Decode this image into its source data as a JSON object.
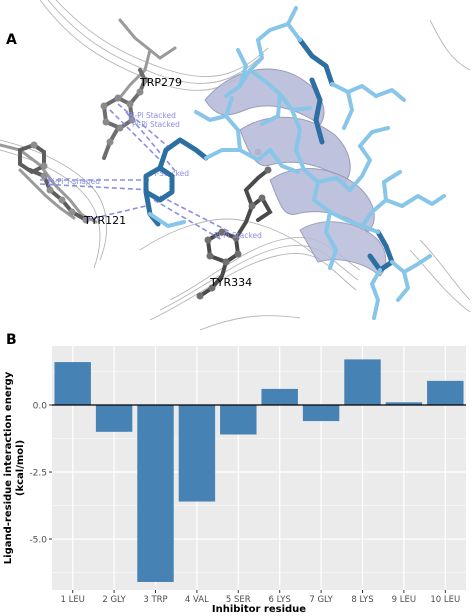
{
  "panels": {
    "a": {
      "label": "A"
    },
    "b": {
      "label": "B"
    }
  },
  "molecule_labels": {
    "trp279": "TRP279",
    "tyr121": "TYR121",
    "tyr334": "TYR334",
    "interaction_1": "Pi-Pi Stacked",
    "interaction_2": "Pi-Pi Stacked",
    "interaction_3": "Pi-Pi T-shaped",
    "interaction_4": "Pi-Stacked",
    "interaction_5": "Pi-Pi Stacked"
  },
  "colors": {
    "bar": "#4682b4",
    "panel_bg": "#ebebeb",
    "grid": "#ffffff",
    "ligand_light": "#87c6e8",
    "ligand_dark": "#2e6fa3",
    "ribbon": "#b7bcd9",
    "residue": "#555555",
    "interaction": "#8a8fe0"
  },
  "chart_data": {
    "type": "bar",
    "categories": [
      "1 LEU",
      "2 GLY",
      "3 TRP",
      "4 VAL",
      "5 SER",
      "6 LYS",
      "7 GLY",
      "8 LYS",
      "9 LEU",
      "10 LEU"
    ],
    "values": [
      1.6,
      -1.0,
      -6.6,
      -3.6,
      -1.1,
      0.6,
      -0.6,
      1.7,
      0.1,
      0.9
    ],
    "xlabel": "Inhibitor residue",
    "ylabel": "Ligand-residue interaction energy (kcal/mol)",
    "ylabel_line1": "Ligand-residue interaction energy",
    "ylabel_line2": "(kcal/mol)",
    "ylim": [
      -6.9,
      2.2
    ],
    "yticks": [
      -5.0,
      -2.5,
      0.0
    ],
    "ytick_labels": [
      "-5.0",
      "-2.5",
      "0.0"
    ],
    "grid": true,
    "zero_line": true
  }
}
